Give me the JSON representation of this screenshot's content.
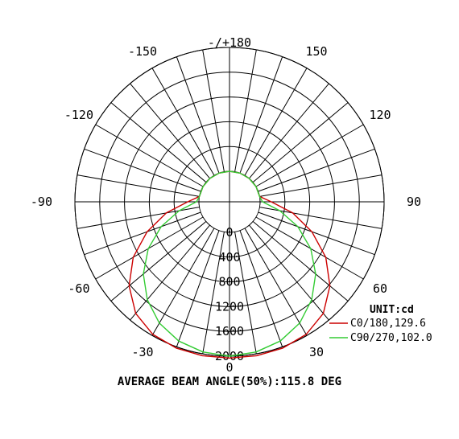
{
  "chart_data": {
    "type": "polar",
    "angle_labels": [
      {
        "angle": 180,
        "text": "-/+180"
      },
      {
        "angle": -150,
        "text": "-150"
      },
      {
        "angle": 150,
        "text": "150"
      },
      {
        "angle": -120,
        "text": "-120"
      },
      {
        "angle": 120,
        "text": "120"
      },
      {
        "angle": -90,
        "text": "-90"
      },
      {
        "angle": 90,
        "text": "90"
      },
      {
        "angle": -60,
        "text": "-60"
      },
      {
        "angle": 60,
        "text": "60"
      },
      {
        "angle": -30,
        "text": "-30"
      },
      {
        "angle": 30,
        "text": "30"
      },
      {
        "angle": 0,
        "text": "0"
      }
    ],
    "radial_ticks": [
      0,
      400,
      800,
      1200,
      1600,
      2000
    ],
    "radial_max": 2000,
    "unit": "UNIT:cd",
    "caption": "AVERAGE BEAM ANGLE(50%):115.8 DEG",
    "series": [
      {
        "name": "C0/180,129.6",
        "color": "#cc0000",
        "angles": [
          -180,
          -160,
          -140,
          -120,
          -100,
          -90,
          -80,
          -70,
          -60,
          -50,
          -40,
          -30,
          -20,
          -10,
          0,
          10,
          20,
          30,
          40,
          50,
          60,
          70,
          80,
          90,
          100,
          120,
          140,
          160,
          180
        ],
        "values": [
          0,
          0,
          0,
          0,
          0,
          180,
          540,
          920,
          1300,
          1620,
          1860,
          1980,
          2020,
          2030,
          2030,
          2030,
          2020,
          1980,
          1860,
          1620,
          1300,
          920,
          540,
          180,
          0,
          0,
          0,
          0,
          0
        ]
      },
      {
        "name": "C90/270,102.0",
        "color": "#33cc33",
        "angles": [
          -180,
          -160,
          -140,
          -120,
          -100,
          -90,
          -80,
          -70,
          -60,
          -50,
          -40,
          -30,
          -20,
          -10,
          0,
          10,
          20,
          30,
          40,
          50,
          60,
          70,
          80,
          90,
          100,
          120,
          140,
          160,
          180
        ],
        "values": [
          0,
          0,
          0,
          0,
          0,
          40,
          330,
          680,
          1020,
          1320,
          1570,
          1770,
          1900,
          1970,
          2000,
          1970,
          1900,
          1770,
          1570,
          1320,
          1020,
          680,
          330,
          40,
          0,
          0,
          0,
          0,
          0
        ]
      }
    ]
  }
}
